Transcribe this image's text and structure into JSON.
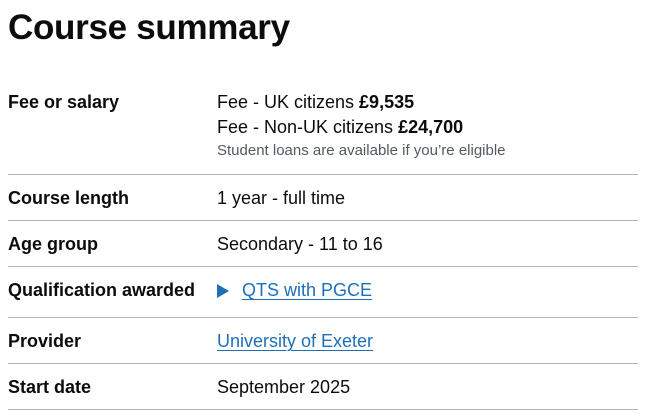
{
  "page": {
    "title": "Course summary"
  },
  "summary": {
    "fee": {
      "key": "Fee or salary",
      "uk_label": "Fee - UK citizens ",
      "uk_amount": "£9,535",
      "non_uk_label": "Fee - Non-UK citizens ",
      "non_uk_amount": "£24,700",
      "hint": "Student loans are available if you’re eligible"
    },
    "course_length": {
      "key": "Course length",
      "value": "1 year - full time"
    },
    "age_group": {
      "key": "Age group",
      "value": "Secondary - 11 to 16"
    },
    "qualification": {
      "key": "Qualification awarded",
      "value": "QTS with PGCE",
      "icon": "triangle-right-icon"
    },
    "provider": {
      "key": "Provider",
      "value": "University of Exeter"
    },
    "start_date": {
      "key": "Start date",
      "value": "September 2025"
    }
  },
  "colors": {
    "text": "#0b0c0c",
    "link": "#1d70b8",
    "hint": "#505a5f",
    "border": "#b1b4b6"
  }
}
